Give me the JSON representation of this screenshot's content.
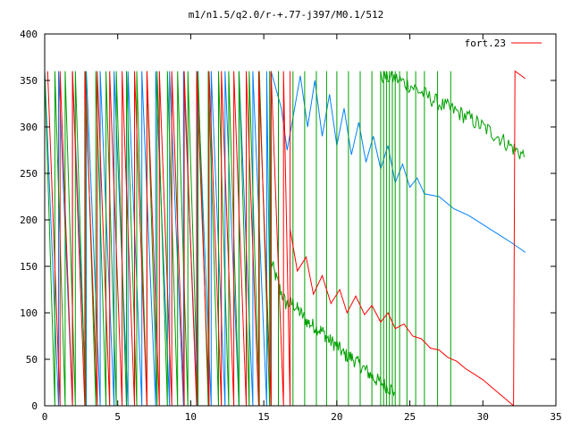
{
  "chart_data": {
    "type": "line",
    "title": "m1/n1.5/q2.0/r-+.77-j397/M0.1/512",
    "xlabel": "",
    "ylabel": "",
    "xlim": [
      0,
      35
    ],
    "ylim": [
      0,
      400
    ],
    "x_ticks": [
      0,
      5,
      10,
      15,
      20,
      25,
      30,
      35
    ],
    "y_ticks": [
      0,
      50,
      100,
      150,
      200,
      250,
      300,
      350,
      400
    ],
    "grid": false,
    "legend_position": "top-right",
    "legend": [
      {
        "label": "fort.23",
        "color": "#ff0000"
      }
    ],
    "series": [
      {
        "name": "fort.23",
        "color": "#ff0000",
        "wrap_start": 0.2,
        "wrap_end": 16.8,
        "wrap_period": 0.85,
        "smooth_x": [
          16.8,
          17.3,
          17.9,
          18.4,
          19.0,
          19.6,
          20.2,
          20.7,
          21.3,
          21.9,
          22.4,
          23.0,
          23.5,
          24.0,
          24.6,
          25.2,
          25.8,
          26.4,
          27.0,
          27.6,
          28.2,
          28.8,
          29.4,
          30.0,
          30.6,
          31.2,
          31.8,
          32.1
        ],
        "smooth_y": [
          190,
          145,
          160,
          120,
          140,
          110,
          125,
          100,
          118,
          98,
          108,
          90,
          100,
          83,
          88,
          75,
          72,
          62,
          60,
          52,
          48,
          40,
          34,
          28,
          20,
          12,
          4,
          0
        ],
        "tail_x": [
          32.1,
          32.2,
          32.9
        ],
        "tail_y": [
          0,
          360,
          352
        ]
      },
      {
        "name": "",
        "color": "#00a000",
        "wrap_start": 0.0,
        "wrap_end": 15.5,
        "wrap_period": 0.7,
        "noisy_x": [
          15.5,
          16.0,
          16.5,
          17.0,
          17.5,
          18.0,
          18.5,
          19.0,
          19.5,
          20.0,
          20.5,
          21.0,
          21.5,
          22.0,
          22.5,
          23.0,
          23.5,
          24.0
        ],
        "noisy_y": [
          155,
          130,
          110,
          110,
          100,
          90,
          85,
          80,
          70,
          65,
          55,
          52,
          45,
          38,
          30,
          25,
          20,
          15
        ],
        "upper_x": [
          23.0,
          24.0,
          25.0,
          26.0,
          27.0,
          28.0,
          29.0,
          30.0,
          31.0,
          32.0,
          32.9
        ],
        "upper_y": [
          355,
          352,
          345,
          335,
          325,
          318,
          310,
          300,
          290,
          278,
          268
        ],
        "spikes_x": [
          16.0,
          17.0,
          17.8,
          18.6,
          19.3,
          20.0,
          20.8,
          21.6,
          22.4,
          23.0,
          23.2,
          23.4,
          23.6,
          23.8,
          24.0,
          24.3,
          24.8,
          25.4,
          26.0,
          26.9,
          27.8
        ]
      },
      {
        "name": "",
        "color": "#0080ff",
        "wrap_start": 0.0,
        "wrap_end": 15.5,
        "wrap_period": 0.95,
        "smooth_x": [
          15.5,
          16.2,
          16.6,
          17.0,
          17.5,
          18.0,
          18.5,
          19.0,
          19.5,
          20.0,
          20.5,
          21.0,
          21.5,
          22.0,
          22.5,
          23.0,
          23.5,
          24.0,
          24.5,
          25.0,
          25.5,
          26.0,
          27.0,
          28.0,
          29.0,
          30.0,
          31.0,
          32.0,
          32.9
        ],
        "smooth_y": [
          360,
          320,
          275,
          310,
          355,
          300,
          350,
          290,
          335,
          280,
          320,
          270,
          305,
          262,
          290,
          255,
          280,
          240,
          260,
          235,
          245,
          228,
          225,
          212,
          205,
          195,
          185,
          175,
          165
        ]
      }
    ]
  }
}
